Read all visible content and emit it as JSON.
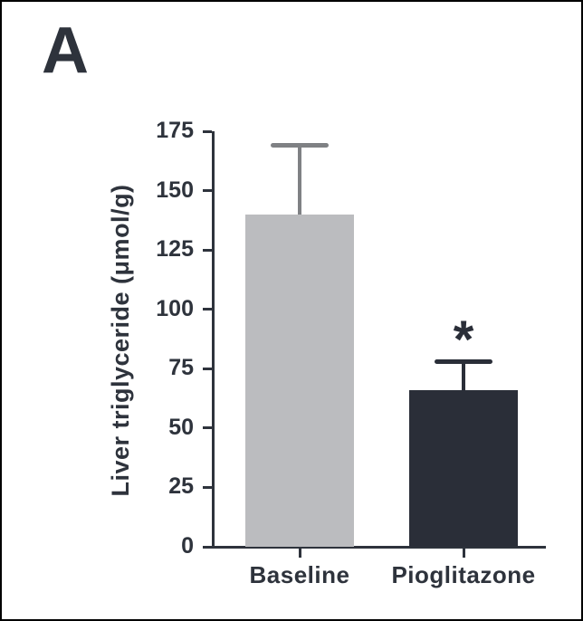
{
  "chart_data": {
    "type": "bar",
    "panel_label": "A",
    "title": "",
    "ylabel": "Liver triglyceride (μmol/g)",
    "xlabel": "",
    "categories": [
      "Baseline",
      "Pioglitazone"
    ],
    "values": [
      140,
      66
    ],
    "errors": [
      29,
      12
    ],
    "error_bar_style": "upper only, capped",
    "yticks": [
      0,
      25,
      50,
      75,
      100,
      125,
      150,
      175
    ],
    "ylim": [
      0,
      175
    ],
    "grid": false,
    "legend": null,
    "bar_colors": [
      "#bbbcbf",
      "#2a2e38"
    ],
    "error_bar_colors": [
      "#7f8184",
      "#2a2e38"
    ],
    "axis_color": "#2e333c",
    "text_color": "#2e333c",
    "significance_markers": [
      {
        "category": "Pioglitazone",
        "marker": "*"
      }
    ]
  }
}
